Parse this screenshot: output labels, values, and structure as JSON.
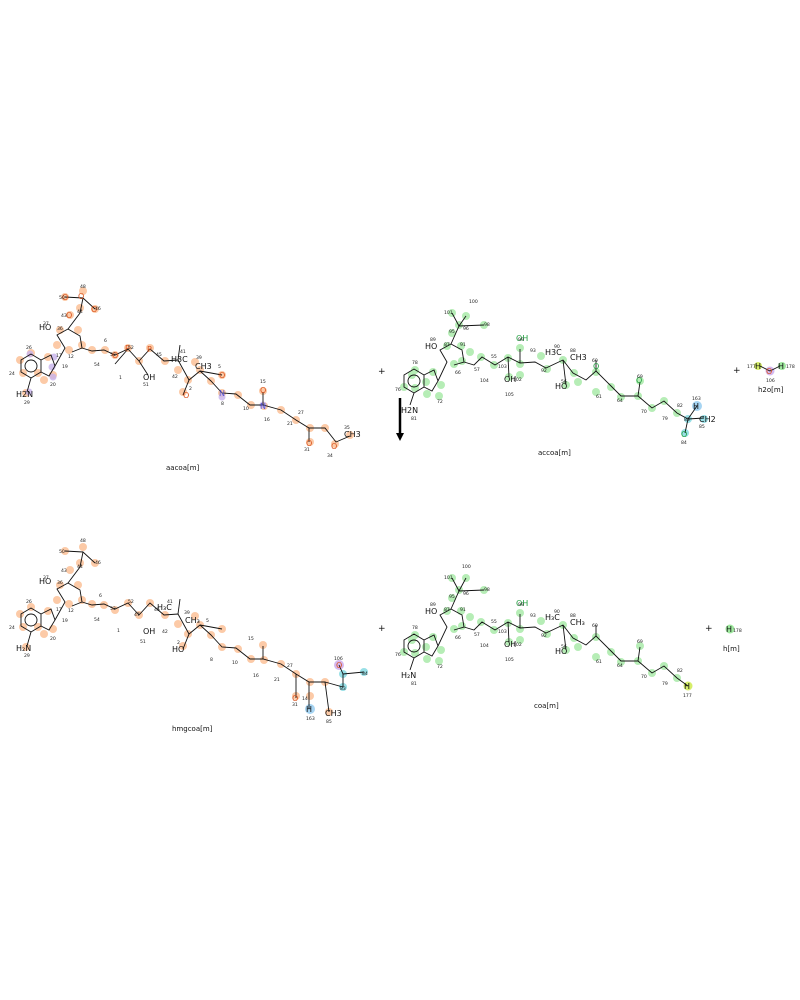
{
  "reaction": {
    "plus_sign": "+",
    "reactants": [
      {
        "name": "aacoa[m]",
        "color": "#f9a15e"
      },
      {
        "name": "accoa[m]",
        "color": "#7fe07f"
      },
      {
        "name": "h2o[m]",
        "color": "#b8a4e8"
      }
    ],
    "products": [
      {
        "name": "hmgcoa[m]",
        "color": "#f9a15e"
      },
      {
        "name": "coa[m]",
        "color": "#7fe07f"
      },
      {
        "name": "h[m]",
        "color": "#d6ee6a"
      }
    ]
  },
  "labels": {
    "aacoa": {
      "n48": "48",
      "n50": "50",
      "n46": "46",
      "n44": "44",
      "n43": "43",
      "n37": "37",
      "n36": "36",
      "n26": "26",
      "n17": "17",
      "n19": "19",
      "n20": "20",
      "n24": "24",
      "n29": "29",
      "n12": "12",
      "n6": "6",
      "n53": "53",
      "n52": "52",
      "n54": "54",
      "n1": "1",
      "n51": "51",
      "n45": "45",
      "n41": "41",
      "n39": "39",
      "n42": "42",
      "n5": "5",
      "n2": "2",
      "n8": "8",
      "n10": "10",
      "n15": "15",
      "n16": "16",
      "n21": "21",
      "n27": "27",
      "n31": "31",
      "n34": "34",
      "n35": "35",
      "HO": "HO",
      "H2N": "H2N",
      "OH": "OH",
      "H3C": "H3C",
      "CH3": "CH3",
      "CH3b": "CH3"
    },
    "accoa": {
      "n100": "100",
      "n101": "101",
      "n98": "98",
      "n95": "95",
      "n96": "96",
      "n89": "89",
      "n87": "87",
      "n91": "91",
      "n78": "78",
      "n76": "76",
      "n72": "72",
      "n81": "81",
      "n66": "66",
      "n57": "57",
      "n55": "55",
      "n99": "99",
      "n93": "93",
      "n90": "90",
      "n88": "88",
      "n103": "103",
      "n104": "104",
      "n102": "102",
      "n105": "105",
      "n92": "92",
      "n60": "60",
      "n56": "56",
      "n61": "61",
      "n69": "69",
      "n64": "64",
      "n70": "70",
      "n79": "79",
      "n82": "82",
      "n163": "163",
      "n83": "83",
      "n85": "85",
      "n84": "84",
      "H": "H",
      "CH2": "CH2",
      "HO": "HO",
      "H2N": "H2N",
      "OH": "OH",
      "H3C": "H3C",
      "CH3": "CH3"
    },
    "h2o": {
      "n177": "177",
      "n178": "178",
      "n106": "106",
      "H": "H",
      "O": "O"
    },
    "hmgcoa": {
      "n106": "106",
      "n84": "84",
      "n83": "83",
      "n163": "163",
      "n85": "85",
      "n31": "31",
      "n14": "14",
      "H": "H",
      "CH3": "CH3"
    },
    "coa": {
      "n177": "177",
      "H": "H"
    },
    "h": {
      "n178": "178",
      "H": "H"
    }
  }
}
